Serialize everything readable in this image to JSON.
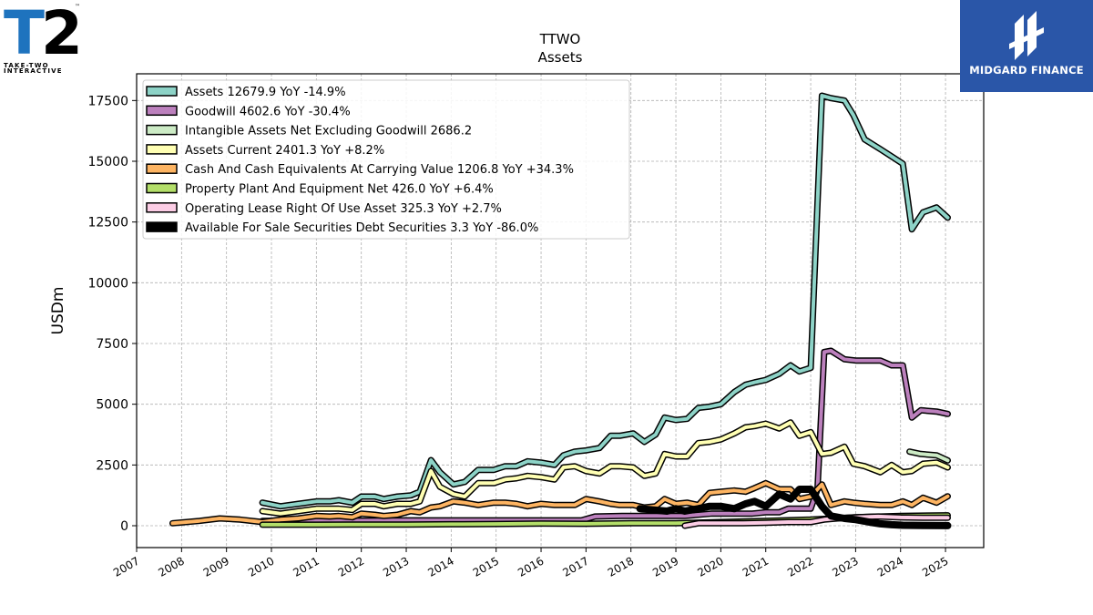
{
  "logos": {
    "left": {
      "mark": "T2",
      "lines": [
        "TAKE-TWO",
        "INTERACTIVE"
      ],
      "tm": "™"
    },
    "right": {
      "text": "MIDGARD FINANCE",
      "bg": "#2a56a8"
    }
  },
  "chart_data": {
    "type": "line",
    "title": "TTWO",
    "subtitle": "Assets",
    "ylabel": "USDm",
    "xlabel": "",
    "xlim": [
      2007.0,
      2025.85
    ],
    "ylim": [
      -900,
      18600
    ],
    "yticks": [
      0,
      2500,
      5000,
      7500,
      10000,
      12500,
      15000,
      17500
    ],
    "yticklabels": [
      "0",
      "2500",
      "5000",
      "7500",
      "10000",
      "12500",
      "15000",
      "17500"
    ],
    "xticks": [
      2007,
      2008,
      2009,
      2010,
      2011,
      2012,
      2013,
      2014,
      2015,
      2016,
      2017,
      2018,
      2019,
      2020,
      2021,
      2022,
      2023,
      2024,
      2025
    ],
    "xticklabels": [
      "2007",
      "2008",
      "2009",
      "2010",
      "2011",
      "2012",
      "2013",
      "2014",
      "2015",
      "2016",
      "2017",
      "2018",
      "2019",
      "2020",
      "2021",
      "2022",
      "2023",
      "2024",
      "2025"
    ],
    "grid": true,
    "legend_position": "top-left",
    "series": [
      {
        "name": "Assets",
        "label": "Assets  12679.9 YoY -14.9%",
        "color": "#8dd3c7",
        "x": [
          2009.8,
          2010.2,
          2010.6,
          2011.0,
          2011.3,
          2011.5,
          2011.8,
          2012.0,
          2012.3,
          2012.5,
          2012.8,
          2013.1,
          2013.3,
          2013.55,
          2013.75,
          2014.05,
          2014.3,
          2014.6,
          2014.95,
          2015.2,
          2015.45,
          2015.7,
          2016.0,
          2016.3,
          2016.5,
          2016.75,
          2017.0,
          2017.3,
          2017.55,
          2017.75,
          2018.05,
          2018.3,
          2018.55,
          2018.75,
          2019.0,
          2019.25,
          2019.5,
          2019.75,
          2020.0,
          2020.3,
          2020.55,
          2020.75,
          2021.0,
          2021.3,
          2021.55,
          2021.75,
          2022.0,
          2022.25,
          2022.45,
          2022.75,
          2022.95,
          2023.2,
          2023.55,
          2023.8,
          2024.05,
          2024.25,
          2024.5,
          2024.8,
          2025.05
        ],
        "y": [
          950,
          800,
          900,
          1000,
          1000,
          1050,
          950,
          1200,
          1200,
          1100,
          1200,
          1250,
          1400,
          2700,
          2200,
          1700,
          1800,
          2300,
          2300,
          2450,
          2450,
          2650,
          2600,
          2500,
          2900,
          3050,
          3100,
          3200,
          3700,
          3700,
          3800,
          3450,
          3750,
          4450,
          4350,
          4400,
          4850,
          4900,
          5000,
          5500,
          5800,
          5900,
          6000,
          6250,
          6600,
          6350,
          6500,
          17700,
          17600,
          17500,
          16900,
          15900,
          15500,
          15200,
          14900,
          12200,
          12900,
          13100,
          12680
        ]
      },
      {
        "name": "Goodwill",
        "label": "Goodwill  4602.6 YoY -30.4%",
        "color": "#bc80bd",
        "x": [
          2009.8,
          2011.0,
          2012.0,
          2013.0,
          2014.0,
          2015.0,
          2016.0,
          2016.9,
          2017.2,
          2017.8,
          2018.3,
          2018.8,
          2019.2,
          2019.8,
          2020.3,
          2020.6,
          2020.7,
          2021.0,
          2021.3,
          2021.5,
          2021.75,
          2022.0,
          2022.15,
          2022.3,
          2022.45,
          2022.75,
          2023.0,
          2023.3,
          2023.55,
          2023.8,
          2024.05,
          2024.25,
          2024.45,
          2024.8,
          2025.05
        ],
        "y": [
          200,
          210,
          210,
          220,
          220,
          220,
          220,
          220,
          380,
          400,
          400,
          400,
          400,
          500,
          500,
          500,
          500,
          550,
          550,
          700,
          700,
          700,
          1500,
          7150,
          7200,
          6850,
          6800,
          6800,
          6800,
          6600,
          6600,
          4450,
          4750,
          4700,
          4600
        ]
      },
      {
        "name": "Intangible Assets Net Excluding Goodwill",
        "label": "Intangible Assets Net Excluding Goodwill  2686.2",
        "color": "#ccebc5",
        "x": [
          2024.2,
          2024.45,
          2024.8,
          2025.05
        ],
        "y": [
          3050,
          2950,
          2900,
          2690
        ]
      },
      {
        "name": "Assets Current",
        "label": "Assets Current  2401.3 YoY +8.2%",
        "color": "#ffffb3",
        "x": [
          2009.8,
          2010.2,
          2010.6,
          2011.0,
          2011.3,
          2011.5,
          2011.8,
          2012.0,
          2012.3,
          2012.5,
          2012.8,
          2013.1,
          2013.3,
          2013.55,
          2013.75,
          2014.05,
          2014.3,
          2014.6,
          2014.95,
          2015.2,
          2015.45,
          2015.7,
          2016.0,
          2016.3,
          2016.5,
          2016.75,
          2017.0,
          2017.3,
          2017.55,
          2017.75,
          2018.05,
          2018.3,
          2018.55,
          2018.75,
          2019.0,
          2019.25,
          2019.5,
          2019.75,
          2020.0,
          2020.3,
          2020.55,
          2020.75,
          2021.0,
          2021.3,
          2021.55,
          2021.75,
          2022.0,
          2022.25,
          2022.45,
          2022.75,
          2022.95,
          2023.2,
          2023.55,
          2023.8,
          2024.05,
          2024.25,
          2024.5,
          2024.8,
          2025.05
        ],
        "y": [
          600,
          500,
          600,
          700,
          700,
          700,
          650,
          900,
          900,
          800,
          900,
          900,
          1000,
          2250,
          1600,
          1300,
          1200,
          1750,
          1750,
          1900,
          1950,
          2050,
          2000,
          1900,
          2400,
          2450,
          2250,
          2150,
          2450,
          2450,
          2400,
          2050,
          2150,
          2950,
          2850,
          2850,
          3400,
          3450,
          3550,
          3800,
          4050,
          4100,
          4200,
          4000,
          4250,
          3700,
          3850,
          2950,
          3000,
          3250,
          2550,
          2450,
          2200,
          2500,
          2200,
          2250,
          2550,
          2600,
          2400
        ]
      },
      {
        "name": "Cash And Cash Equivalents At Carrying Value",
        "label": "Cash And Cash Equivalents At Carrying Value  1206.8 YoY +34.3%",
        "color": "#fdb462",
        "x": [
          2007.8,
          2008.4,
          2008.85,
          2009.3,
          2009.8,
          2010.2,
          2010.6,
          2011.0,
          2011.3,
          2011.5,
          2011.8,
          2012.0,
          2012.3,
          2012.5,
          2012.8,
          2013.1,
          2013.3,
          2013.55,
          2013.75,
          2014.05,
          2014.3,
          2014.6,
          2014.95,
          2015.2,
          2015.45,
          2015.7,
          2016.0,
          2016.3,
          2016.5,
          2016.75,
          2017.0,
          2017.3,
          2017.55,
          2017.75,
          2018.05,
          2018.3,
          2018.55,
          2018.75,
          2019.0,
          2019.25,
          2019.5,
          2019.75,
          2020.0,
          2020.3,
          2020.55,
          2020.75,
          2021.0,
          2021.3,
          2021.55,
          2021.75,
          2022.0,
          2022.25,
          2022.45,
          2022.75,
          2022.95,
          2023.2,
          2023.55,
          2023.8,
          2024.05,
          2024.25,
          2024.5,
          2024.8,
          2025.05
        ],
        "y": [
          100,
          200,
          300,
          250,
          150,
          250,
          300,
          400,
          380,
          400,
          350,
          500,
          450,
          400,
          450,
          600,
          550,
          750,
          800,
          1000,
          950,
          850,
          950,
          950,
          900,
          800,
          900,
          850,
          850,
          850,
          1100,
          1000,
          900,
          850,
          850,
          750,
          800,
          1100,
          900,
          950,
          850,
          1350,
          1400,
          1450,
          1400,
          1550,
          1750,
          1500,
          1500,
          1100,
          1200,
          1700,
          850,
          1000,
          950,
          900,
          850,
          850,
          1000,
          850,
          1150,
          950,
          1210
        ]
      },
      {
        "name": "Property Plant And Equipment Net",
        "label": "Property Plant And Equipment Net  426.0 YoY +6.4%",
        "color": "#b3de69",
        "x": [
          2009.8,
          2011.0,
          2012.0,
          2013.0,
          2014.0,
          2015.0,
          2016.0,
          2017.0,
          2018.0,
          2019.0,
          2020.0,
          2021.0,
          2022.0,
          2023.0,
          2024.0,
          2025.05
        ],
        "y": [
          40,
          40,
          50,
          50,
          60,
          70,
          90,
          80,
          100,
          100,
          150,
          200,
          250,
          350,
          400,
          426
        ]
      },
      {
        "name": "Operating Lease Right Of Use Asset",
        "label": "Operating Lease Right Of Use Asset  325.3 YoY +2.7%",
        "color": "#fccde5",
        "x": [
          2019.2,
          2019.5,
          2020.0,
          2020.5,
          2021.0,
          2021.5,
          2022.0,
          2022.3,
          2022.6,
          2023.0,
          2023.5,
          2024.0,
          2024.5,
          2025.05
        ],
        "y": [
          0,
          100,
          100,
          100,
          120,
          150,
          150,
          250,
          300,
          350,
          380,
          340,
          330,
          325
        ]
      },
      {
        "name": "Available For Sale Securities Debt Securities",
        "label": "Available For Sale Securities Debt Securities  3.3 YoY -86.0%",
        "color": "#000000",
        "x": [
          2018.2,
          2018.5,
          2018.8,
          2019.0,
          2019.2,
          2019.5,
          2019.75,
          2020.0,
          2020.3,
          2020.55,
          2020.75,
          2021.0,
          2021.3,
          2021.55,
          2021.75,
          2022.0,
          2022.25,
          2022.45,
          2022.75,
          2023.0,
          2023.3,
          2023.55,
          2023.8,
          2024.05,
          2024.5,
          2025.05
        ],
        "y": [
          700,
          650,
          600,
          700,
          600,
          700,
          800,
          800,
          700,
          900,
          1000,
          800,
          1300,
          1100,
          1500,
          1500,
          800,
          400,
          300,
          250,
          150,
          80,
          40,
          20,
          10,
          3
        ]
      }
    ]
  }
}
